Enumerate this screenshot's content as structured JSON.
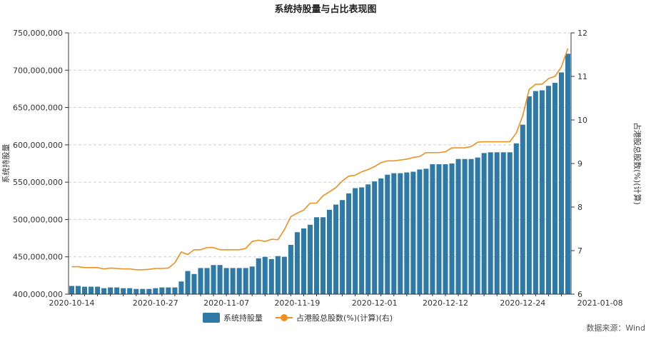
{
  "chart_data": {
    "type": "bar",
    "title": "系统持股量与占比表现图",
    "ylabel": "系统持股量",
    "y2label": "占港股总股数(%)(计算)",
    "source": "数据来源：Wind",
    "ylim": [
      400000000,
      750000000
    ],
    "y2lim": [
      6,
      12
    ],
    "y_ticks": [
      "400,000,000",
      "450,000,000",
      "500,000,000",
      "550,000,000",
      "600,000,000",
      "650,000,000",
      "700,000,000",
      "750,000,000"
    ],
    "y2_ticks": [
      "6",
      "7",
      "8",
      "9",
      "10",
      "11",
      "12"
    ],
    "x_tick_labels": [
      "2020-10-14",
      "2020-10-27",
      "2020-11-07",
      "2020-11-19",
      "2020-12-01",
      "2020-12-12",
      "2020-12-24",
      "2021-01-08"
    ],
    "x_tick_index": [
      0,
      13,
      24,
      35,
      47,
      58,
      70,
      82
    ],
    "legend_position": "bottom",
    "colors": {
      "bar": "#2e79a6",
      "line": "#f0901e",
      "grid": "#d0d0d0"
    },
    "series": [
      {
        "name": "系统持股量",
        "type": "bar",
        "values": [
          411,
          411,
          410,
          410,
          410,
          408,
          409,
          409,
          408,
          408,
          407,
          407,
          407,
          408,
          409,
          409,
          409,
          417,
          431,
          427,
          435,
          435,
          439,
          439,
          435,
          435,
          435,
          435,
          437,
          448,
          450,
          447,
          451,
          450,
          466,
          483,
          488,
          493,
          503,
          503,
          513,
          520,
          526,
          535,
          542,
          543,
          547,
          551,
          555,
          560,
          562,
          562,
          563,
          564,
          567,
          568,
          574,
          574,
          574,
          575,
          581,
          581,
          581,
          583,
          589,
          590,
          590,
          590,
          590,
          602,
          627,
          665,
          672,
          673,
          679,
          683,
          697,
          722
        ]
      },
      {
        "name": "占港股总股数(%)(计算)(右)",
        "type": "line",
        "axis": "right",
        "values": [
          6.63,
          6.63,
          6.61,
          6.61,
          6.61,
          6.58,
          6.6,
          6.59,
          6.58,
          6.58,
          6.56,
          6.56,
          6.57,
          6.59,
          6.59,
          6.6,
          6.72,
          6.97,
          6.91,
          7.02,
          7.02,
          7.07,
          7.07,
          7.02,
          7.02,
          7.02,
          7.02,
          7.05,
          7.21,
          7.24,
          7.21,
          7.26,
          7.25,
          7.48,
          7.78,
          7.86,
          7.93,
          8.09,
          8.09,
          8.26,
          8.35,
          8.45,
          8.6,
          8.71,
          8.73,
          8.81,
          8.86,
          8.93,
          9.02,
          9.06,
          9.06,
          9.08,
          9.1,
          9.14,
          9.16,
          9.25,
          9.25,
          9.25,
          9.27,
          9.36,
          9.36,
          9.36,
          9.39,
          9.49,
          9.5,
          9.5,
          9.5,
          9.5,
          9.5,
          9.7,
          10.1,
          10.7,
          10.82,
          10.82,
          10.95,
          11.0,
          11.22,
          11.64
        ]
      }
    ]
  }
}
